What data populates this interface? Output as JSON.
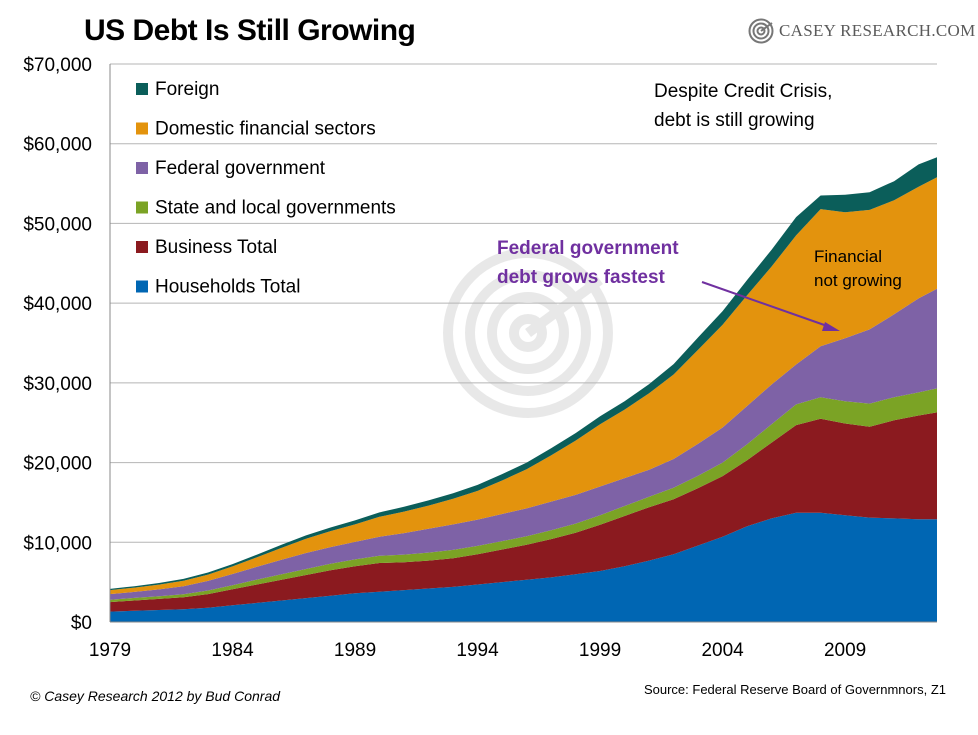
{
  "header": {
    "title": "US Debt Is Still Growing",
    "logo_text": "CASEY RESEARCH.COM"
  },
  "footer": {
    "copyright": "© Casey Research 2012 by Bud Conrad",
    "source": "Source: Federal Reserve Board of Governmnors, Z1"
  },
  "chart_data": {
    "type": "area",
    "stacked": true,
    "title": "US Debt Is Still Growing",
    "xlabel": "",
    "ylabel": "",
    "xlim": [
      1979,
      2012.75
    ],
    "ylim": [
      0,
      70000
    ],
    "y_ticks": [
      0,
      10000,
      20000,
      30000,
      40000,
      50000,
      60000,
      70000
    ],
    "y_tick_labels": [
      "$0",
      "$10,000",
      "$20,000",
      "$30,000",
      "$40,000",
      "$50,000",
      "$60,000",
      "$70,000"
    ],
    "x_ticks": [
      1979,
      1984,
      1989,
      1994,
      1999,
      2004,
      2009
    ],
    "x_tick_labels": [
      "1979",
      "1984",
      "1989",
      "1994",
      "1999",
      "2004",
      "2009"
    ],
    "grid": "horizontal",
    "legend_position": "top-left",
    "x": [
      1979,
      1980,
      1981,
      1982,
      1983,
      1984,
      1985,
      1986,
      1987,
      1988,
      1989,
      1990,
      1991,
      1992,
      1993,
      1994,
      1995,
      1996,
      1997,
      1998,
      1999,
      2000,
      2001,
      2002,
      2003,
      2004,
      2005,
      2006,
      2007,
      2008,
      2009,
      2010,
      2011,
      2012,
      2012.75
    ],
    "series": [
      {
        "name": "Households Total",
        "color": "#0066b3",
        "values": [
          1300,
          1400,
          1500,
          1600,
          1800,
          2100,
          2400,
          2700,
          3000,
          3300,
          3600,
          3800,
          4000,
          4200,
          4400,
          4700,
          5000,
          5300,
          5600,
          6000,
          6400,
          7000,
          7700,
          8500,
          9600,
          10700,
          12000,
          13000,
          13700,
          13700,
          13400,
          13100,
          13000,
          12900,
          12900
        ]
      },
      {
        "name": "Business Total",
        "color": "#8b1a1f",
        "values": [
          1200,
          1300,
          1400,
          1500,
          1700,
          2000,
          2300,
          2600,
          2900,
          3200,
          3400,
          3600,
          3500,
          3500,
          3600,
          3800,
          4100,
          4400,
          4800,
          5200,
          5800,
          6300,
          6700,
          6900,
          7200,
          7600,
          8300,
          9500,
          11000,
          11800,
          11500,
          11400,
          12300,
          13000,
          13400
        ]
      },
      {
        "name": "State and local governments",
        "color": "#7ba325",
        "values": [
          300,
          320,
          340,
          380,
          450,
          520,
          620,
          700,
          750,
          800,
          850,
          900,
          950,
          1000,
          1050,
          1050,
          1050,
          1050,
          1100,
          1150,
          1200,
          1250,
          1300,
          1450,
          1550,
          1700,
          2000,
          2300,
          2600,
          2700,
          2800,
          2900,
          2900,
          2900,
          3000
        ]
      },
      {
        "name": "Federal government",
        "color": "#7e62a6",
        "values": [
          700,
          750,
          850,
          1000,
          1200,
          1400,
          1600,
          1800,
          2000,
          2100,
          2200,
          2400,
          2700,
          3000,
          3200,
          3300,
          3400,
          3500,
          3600,
          3600,
          3600,
          3500,
          3400,
          3600,
          4000,
          4400,
          4800,
          5000,
          5000,
          6400,
          7900,
          9300,
          10400,
          11800,
          12500
        ]
      },
      {
        "name": "Domestic financial sectors",
        "color": "#e3930d",
        "values": [
          500,
          550,
          600,
          700,
          800,
          950,
          1200,
          1500,
          1800,
          2000,
          2200,
          2500,
          2700,
          2900,
          3200,
          3600,
          4200,
          4900,
          5800,
          6800,
          7800,
          8600,
          9600,
          10600,
          11800,
          12900,
          13900,
          14800,
          16200,
          17200,
          15800,
          15000,
          14300,
          14000,
          14000
        ]
      },
      {
        "name": "Foreign",
        "color": "#0b5e5a",
        "values": [
          150,
          170,
          200,
          230,
          260,
          290,
          330,
          380,
          420,
          460,
          500,
          550,
          600,
          650,
          700,
          750,
          800,
          850,
          900,
          950,
          1000,
          1050,
          1150,
          1300,
          1550,
          1700,
          1900,
          2100,
          2300,
          1700,
          2200,
          2200,
          2400,
          2800,
          2500
        ]
      }
    ],
    "annotations": [
      {
        "text": "Despite Credit Crisis,",
        "color": "#000000"
      },
      {
        "text": "debt is still growing",
        "color": "#000000"
      },
      {
        "text": "Federal government",
        "color": "#7030a0"
      },
      {
        "text": "debt grows fastest",
        "color": "#7030a0"
      },
      {
        "text": "Financial",
        "color": "#000000"
      },
      {
        "text": "not growing",
        "color": "#000000"
      }
    ]
  }
}
